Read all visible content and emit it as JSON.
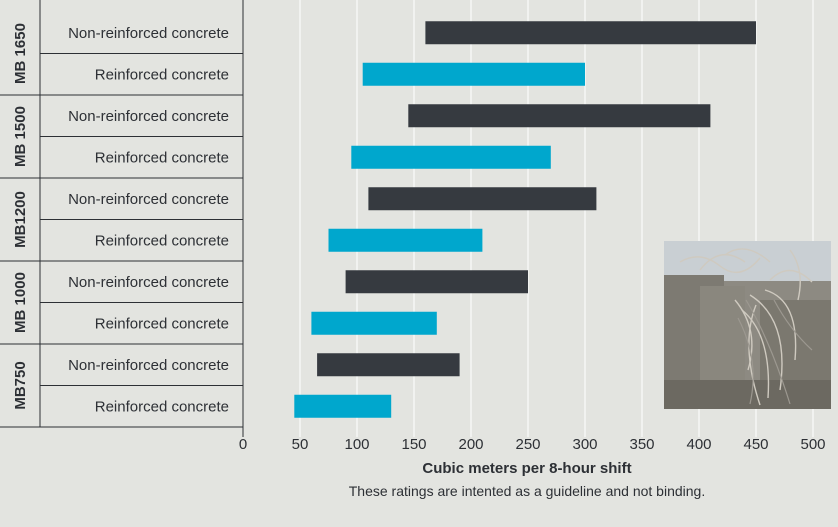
{
  "chart_data": {
    "type": "bar",
    "orientation": "horizontal-range",
    "xlabel": "Cubic meters per 8-hour shift",
    "footnote": "These ratings are intented as a guideline and not binding.",
    "xlim": [
      0,
      520
    ],
    "x_ticks": [
      0,
      50,
      100,
      150,
      200,
      250,
      300,
      350,
      400,
      450,
      500
    ],
    "grid": true,
    "series": [
      {
        "name": "Non-reinforced concrete",
        "color": "#363a40"
      },
      {
        "name": "Reinforced concrete",
        "color": "#00a7cd"
      }
    ],
    "groups": [
      {
        "name": "MB 1650",
        "rows": [
          {
            "label": "Non-reinforced concrete",
            "series": 0,
            "range": [
              160,
              450
            ]
          },
          {
            "label": "Reinforced concrete",
            "series": 1,
            "range": [
              105,
              300
            ]
          }
        ]
      },
      {
        "name": "MB 1500",
        "rows": [
          {
            "label": "Non-reinforced concrete",
            "series": 0,
            "range": [
              145,
              410
            ]
          },
          {
            "label": "Reinforced concrete",
            "series": 1,
            "range": [
              95,
              270
            ]
          }
        ]
      },
      {
        "name": "MB1200",
        "rows": [
          {
            "label": "Non-reinforced concrete",
            "series": 0,
            "range": [
              110,
              310
            ]
          },
          {
            "label": "Reinforced concrete",
            "series": 1,
            "range": [
              75,
              210
            ]
          }
        ]
      },
      {
        "name": "MB 1000",
        "rows": [
          {
            "label": "Non-reinforced concrete",
            "series": 0,
            "range": [
              90,
              250
            ]
          },
          {
            "label": "Reinforced concrete",
            "series": 1,
            "range": [
              60,
              170
            ]
          }
        ]
      },
      {
        "name": "MB750",
        "rows": [
          {
            "label": "Non-reinforced concrete",
            "series": 0,
            "range": [
              65,
              190
            ]
          },
          {
            "label": "Reinforced concrete",
            "series": 1,
            "range": [
              45,
              130
            ]
          }
        ]
      }
    ]
  },
  "photo": {
    "icon": "demolished-concrete-photo"
  }
}
